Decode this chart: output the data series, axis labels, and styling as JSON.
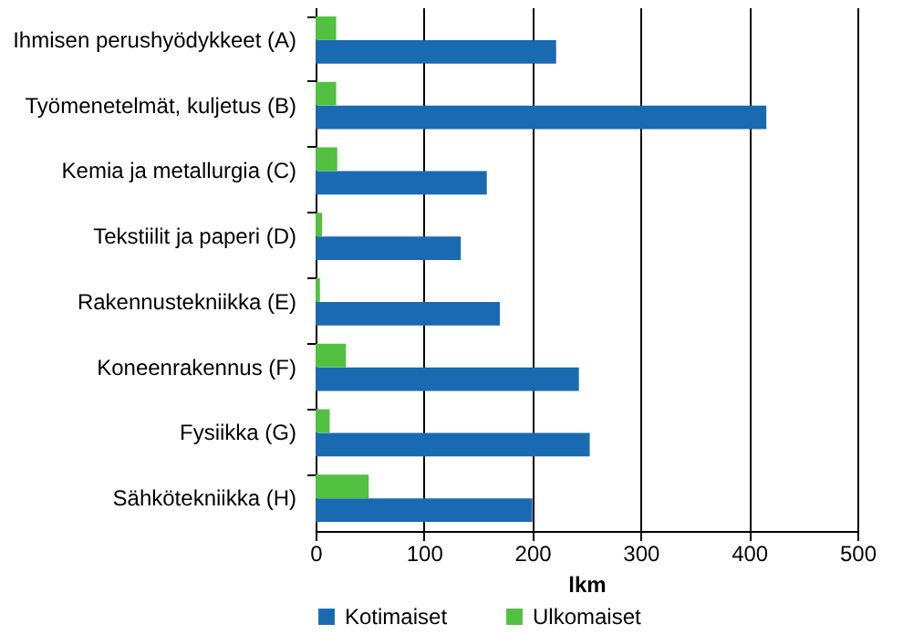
{
  "chart_data": {
    "type": "bar",
    "orientation": "horizontal",
    "xlabel": "lkm",
    "categories": [
      "Ihmisen perushyödykkeet (A)",
      "Työmenetelmät, kuljetus (B)",
      "Kemia ja metallurgia (C)",
      "Tekstiilit ja paperi (D)",
      "Rakennustekniikka (E)",
      "Koneenrakennus (F)",
      "Fysiikka (G)",
      "Sähkötekniikka (H)"
    ],
    "series": [
      {
        "name": "Kotimaiset",
        "color": "#1a6ab2",
        "values": [
          222,
          416,
          158,
          134,
          170,
          243,
          253,
          200
        ]
      },
      {
        "name": "Ulkomaiset",
        "color": "#52c041",
        "values": [
          19,
          19,
          20,
          6,
          4,
          28,
          13,
          49
        ]
      }
    ],
    "xlim": [
      0,
      500
    ],
    "xticks": [
      0,
      100,
      200,
      300,
      400,
      500
    ],
    "grid": "x",
    "legend": "bottom"
  }
}
